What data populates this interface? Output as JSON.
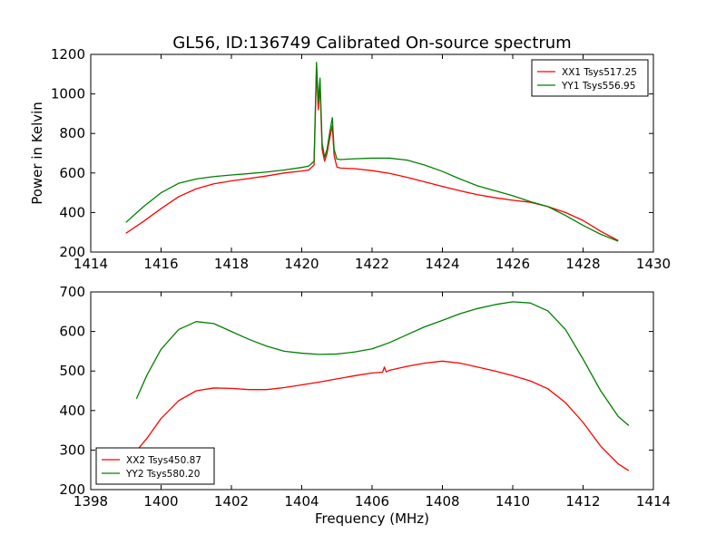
{
  "figure": {
    "title": "GL56, ID:136749 Calibrated On-source spectrum",
    "xlabel": "Frequency (MHz)"
  },
  "chart_data": [
    {
      "type": "line",
      "ylabel": "Power in Kelvin",
      "xlabel": "",
      "xlim": [
        1414,
        1430
      ],
      "ylim": [
        200,
        1200
      ],
      "xticks": [
        "1414",
        "1416",
        "1418",
        "1420",
        "1422",
        "1424",
        "1426",
        "1428",
        "1430"
      ],
      "yticks": [
        "200",
        "400",
        "600",
        "800",
        "1000",
        "1200"
      ],
      "legend": "top-right",
      "series": [
        {
          "name": "XX1 Tsys517.25",
          "color": "#ff0000",
          "x": [
            1415.0,
            1415.5,
            1416.0,
            1416.5,
            1417.0,
            1417.5,
            1418.0,
            1418.5,
            1419.0,
            1419.5,
            1420.0,
            1420.2,
            1420.35,
            1420.42,
            1420.47,
            1420.52,
            1420.58,
            1420.65,
            1420.72,
            1420.8,
            1420.87,
            1420.92,
            1421.0,
            1421.1,
            1421.5,
            1422.0,
            1422.5,
            1423.0,
            1423.5,
            1424.0,
            1424.5,
            1425.0,
            1425.5,
            1426.0,
            1426.5,
            1427.0,
            1427.5,
            1428.0,
            1428.5,
            1429.0
          ],
          "y": [
            295,
            355,
            420,
            480,
            520,
            545,
            560,
            572,
            585,
            600,
            610,
            615,
            640,
            1130,
            920,
            1040,
            720,
            660,
            700,
            780,
            840,
            690,
            630,
            625,
            622,
            612,
            598,
            578,
            555,
            532,
            510,
            490,
            475,
            462,
            452,
            430,
            400,
            360,
            305,
            258
          ]
        },
        {
          "name": "YY1 Tsys556.95",
          "color": "#008000",
          "x": [
            1415.0,
            1415.5,
            1416.0,
            1416.5,
            1417.0,
            1417.5,
            1418.0,
            1418.5,
            1419.0,
            1419.5,
            1420.0,
            1420.2,
            1420.35,
            1420.42,
            1420.47,
            1420.52,
            1420.58,
            1420.65,
            1420.72,
            1420.8,
            1420.87,
            1420.92,
            1421.0,
            1421.1,
            1421.5,
            1422.0,
            1422.5,
            1423.0,
            1423.5,
            1424.0,
            1424.5,
            1425.0,
            1425.5,
            1426.0,
            1426.5,
            1427.0,
            1427.5,
            1428.0,
            1428.5,
            1429.0
          ],
          "y": [
            350,
            430,
            500,
            548,
            570,
            582,
            590,
            597,
            605,
            615,
            628,
            635,
            660,
            1160,
            960,
            1080,
            750,
            680,
            720,
            810,
            880,
            720,
            670,
            668,
            672,
            675,
            675,
            665,
            640,
            608,
            570,
            535,
            510,
            485,
            455,
            430,
            385,
            335,
            290,
            255
          ]
        }
      ]
    },
    {
      "type": "line",
      "ylabel": "",
      "xlabel": "Frequency (MHz)",
      "xlim": [
        1398,
        1414
      ],
      "ylim": [
        200,
        700
      ],
      "xticks": [
        "1398",
        "1400",
        "1402",
        "1404",
        "1406",
        "1408",
        "1410",
        "1412",
        "1414"
      ],
      "yticks": [
        "200",
        "300",
        "400",
        "500",
        "600",
        "700"
      ],
      "legend": "bottom-left",
      "series": [
        {
          "name": "XX2 Tsys450.87",
          "color": "#ff0000",
          "x": [
            1399.3,
            1399.6,
            1400.0,
            1400.5,
            1401.0,
            1401.5,
            1402.0,
            1402.5,
            1403.0,
            1403.5,
            1404.0,
            1404.5,
            1405.0,
            1405.5,
            1406.0,
            1406.3,
            1406.35,
            1406.4,
            1406.5,
            1407.0,
            1407.5,
            1408.0,
            1408.5,
            1409.0,
            1409.5,
            1410.0,
            1410.5,
            1411.0,
            1411.5,
            1412.0,
            1412.5,
            1413.0,
            1413.3
          ],
          "y": [
            298,
            330,
            380,
            425,
            450,
            457,
            456,
            453,
            453,
            458,
            465,
            472,
            480,
            488,
            495,
            497,
            510,
            498,
            502,
            512,
            520,
            525,
            520,
            510,
            500,
            488,
            475,
            455,
            420,
            370,
            310,
            265,
            248
          ]
        },
        {
          "name": "YY2 Tsys580.20",
          "color": "#008000",
          "x": [
            1399.3,
            1399.6,
            1400.0,
            1400.5,
            1401.0,
            1401.5,
            1402.0,
            1402.5,
            1403.0,
            1403.5,
            1404.0,
            1404.5,
            1405.0,
            1405.5,
            1406.0,
            1406.5,
            1407.0,
            1407.5,
            1408.0,
            1408.5,
            1409.0,
            1409.5,
            1410.0,
            1410.5,
            1411.0,
            1411.5,
            1412.0,
            1412.5,
            1413.0,
            1413.3
          ],
          "y": [
            430,
            490,
            555,
            605,
            625,
            620,
            600,
            580,
            563,
            550,
            545,
            542,
            543,
            548,
            556,
            572,
            592,
            612,
            628,
            645,
            658,
            668,
            675,
            672,
            652,
            605,
            530,
            450,
            385,
            362
          ]
        }
      ]
    }
  ]
}
